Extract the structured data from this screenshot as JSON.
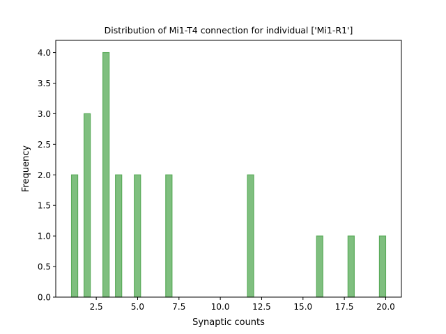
{
  "chart_data": {
    "type": "bar",
    "title": "Distribution of Mi1-T4 connection for individual ['Mi1-R1']",
    "xlabel": "Synaptic counts",
    "ylabel": "Frequency",
    "xlim": [
      0.05,
      20.95
    ],
    "ylim": [
      0,
      4.2
    ],
    "bin_width": 0.38,
    "x": [
      1.19,
      1.95,
      3.09,
      3.85,
      4.99,
      6.89,
      11.83,
      16.01,
      17.91,
      19.81
    ],
    "values": [
      2,
      3,
      4,
      2,
      2,
      2,
      2,
      1,
      1,
      1
    ],
    "x_ticks": [
      2.5,
      5.0,
      7.5,
      10.0,
      12.5,
      15.0,
      17.5,
      20.0
    ],
    "x_tick_labels": [
      "2.5",
      "5.0",
      "7.5",
      "10.0",
      "12.5",
      "15.0",
      "17.5",
      "20.0"
    ],
    "y_ticks": [
      0,
      0.5,
      1.0,
      1.5,
      2.0,
      2.5,
      3.0,
      3.5,
      4.0
    ],
    "y_tick_labels": [
      "0.0",
      "0.5",
      "1.0",
      "1.5",
      "2.0",
      "2.5",
      "3.0",
      "3.5",
      "4.0"
    ],
    "grid": false,
    "legend": "none",
    "colors": {
      "bar_fill": "#7fbf7f",
      "bar_edge": "#5aab5a",
      "axis": "#000000"
    }
  }
}
